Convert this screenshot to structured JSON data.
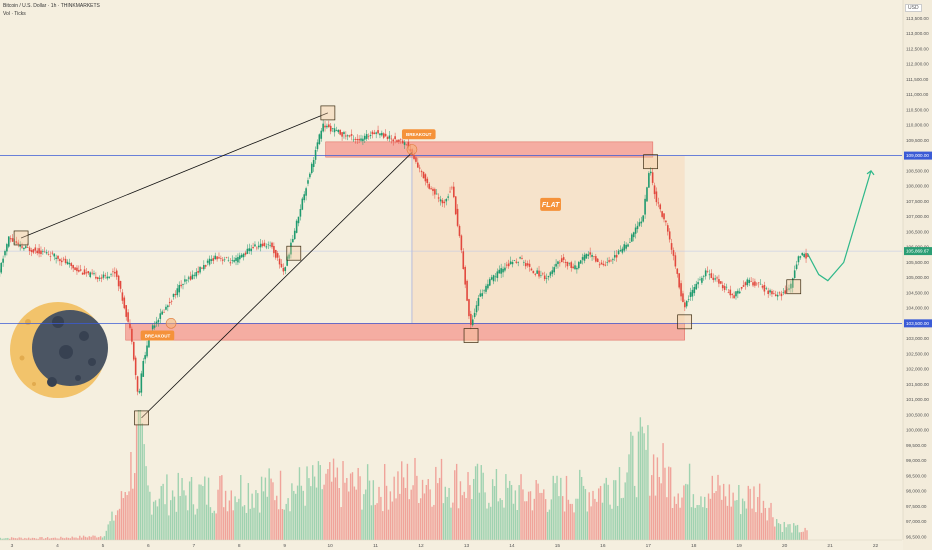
{
  "header": {
    "symbol": "Bitcoin / U.S. Dollar · 1h · THINKMARKETS",
    "volume_label": "Vol · Ticks",
    "currency": "USD"
  },
  "chart_data": {
    "type": "candlestick",
    "title": "",
    "x_ticks": [
      "3",
      "4",
      "5",
      "6",
      "7",
      "8",
      "9",
      "10",
      "11",
      "12",
      "13",
      "14",
      "15",
      "16",
      "17",
      "18",
      "19",
      "20",
      "21",
      "22"
    ],
    "y_ticks": [
      "113,500.00",
      "113,000.00",
      "112,500.00",
      "112,000.00",
      "111,500.00",
      "111,000.00",
      "110,500.00",
      "110,000.00",
      "109,500.00",
      "109,000.00",
      "108,500.00",
      "108,000.00",
      "107,500.00",
      "107,000.00",
      "106,500.00",
      "106,000.00",
      "105,500.00",
      "105,000.00",
      "104,500.00",
      "104,000.00",
      "103,500.00",
      "103,000.00",
      "102,500.00",
      "102,000.00",
      "101,500.00",
      "101,000.00",
      "100,500.00",
      "100,000.00",
      "99,500.00",
      "99,000.00",
      "98,500.00",
      "98,000.00",
      "97,500.00",
      "97,000.00",
      "96,500.00"
    ],
    "ylim": [
      96200,
      113700
    ],
    "price_path": [
      [
        2.7,
        105000
      ],
      [
        2.95,
        106300
      ],
      [
        3.2,
        106000
      ],
      [
        3.5,
        105900
      ],
      [
        3.8,
        105800
      ],
      [
        4.1,
        105600
      ],
      [
        4.4,
        105300
      ],
      [
        4.7,
        105100
      ],
      [
        5.0,
        105000
      ],
      [
        5.3,
        105200
      ],
      [
        5.5,
        104000
      ],
      [
        5.65,
        103100
      ],
      [
        5.8,
        101000
      ],
      [
        5.9,
        102200
      ],
      [
        6.1,
        103400
      ],
      [
        6.4,
        104000
      ],
      [
        6.7,
        104700
      ],
      [
        7.1,
        105200
      ],
      [
        7.5,
        105700
      ],
      [
        7.9,
        105500
      ],
      [
        8.3,
        106000
      ],
      [
        8.7,
        106100
      ],
      [
        9.0,
        105200
      ],
      [
        9.2,
        106300
      ],
      [
        9.4,
        107500
      ],
      [
        9.6,
        108600
      ],
      [
        9.85,
        110000
      ],
      [
        10.0,
        109900
      ],
      [
        10.3,
        109700
      ],
      [
        10.7,
        109500
      ],
      [
        11.0,
        109800
      ],
      [
        11.3,
        109600
      ],
      [
        11.7,
        109400
      ],
      [
        12.0,
        108500
      ],
      [
        12.2,
        108000
      ],
      [
        12.5,
        107400
      ],
      [
        12.7,
        108000
      ],
      [
        12.9,
        106000
      ],
      [
        13.1,
        103400
      ],
      [
        13.3,
        104400
      ],
      [
        13.6,
        105000
      ],
      [
        13.9,
        105400
      ],
      [
        14.2,
        105600
      ],
      [
        14.5,
        105200
      ],
      [
        14.8,
        105000
      ],
      [
        15.1,
        105600
      ],
      [
        15.4,
        105300
      ],
      [
        15.7,
        105800
      ],
      [
        16.0,
        105400
      ],
      [
        16.3,
        105700
      ],
      [
        16.6,
        106200
      ],
      [
        16.9,
        107000
      ],
      [
        17.05,
        108600
      ],
      [
        17.2,
        107500
      ],
      [
        17.4,
        106800
      ],
      [
        17.6,
        105500
      ],
      [
        17.8,
        104000
      ],
      [
        18.0,
        104600
      ],
      [
        18.3,
        105200
      ],
      [
        18.6,
        104800
      ],
      [
        18.9,
        104400
      ],
      [
        19.2,
        104900
      ],
      [
        19.5,
        104700
      ],
      [
        19.8,
        104400
      ],
      [
        20.0,
        104500
      ],
      [
        20.15,
        104700
      ],
      [
        20.35,
        105800
      ],
      [
        20.5,
        105700
      ]
    ],
    "projection": [
      [
        20.5,
        105800
      ],
      [
        20.75,
        105100
      ],
      [
        20.95,
        104900
      ],
      [
        21.3,
        105500
      ],
      [
        21.7,
        107500
      ],
      [
        21.9,
        108500
      ]
    ],
    "levels": [
      {
        "price": 109000,
        "label": "109,000.00"
      },
      {
        "price": 103500,
        "label": "103,500.00"
      }
    ],
    "current_price": {
      "price": 105869,
      "label": "105,869.67"
    },
    "zones": [
      {
        "x": [
          9.9,
          17.1
        ],
        "y": [
          108950,
          109450
        ]
      },
      {
        "x": [
          5.5,
          17.8
        ],
        "y": [
          102950,
          103500
        ]
      }
    ],
    "range_box": {
      "x": [
        11.8,
        17.8
      ],
      "y": [
        103500,
        109000
      ]
    },
    "annotations": [
      {
        "text": "BREAKOUT",
        "x": 11.95,
        "y": 109700
      },
      {
        "text": "BREAKOUT",
        "x": 6.2,
        "y": 103100
      },
      {
        "text": "FLAT",
        "x": 14.85,
        "y": 107400
      }
    ],
    "trendlines": [
      [
        [
          3.2,
          106300
        ],
        [
          9.95,
          110400
        ]
      ],
      [
        [
          5.85,
          100400
        ],
        [
          11.8,
          109100
        ]
      ]
    ],
    "marker_boxes": [
      {
        "x": 3.2,
        "y": 106300
      },
      {
        "x": 5.85,
        "y": 100400
      },
      {
        "x": 9.95,
        "y": 110400
      },
      {
        "x": 9.2,
        "y": 105800
      },
      {
        "x": 13.1,
        "y": 103100
      },
      {
        "x": 17.05,
        "y": 108800
      },
      {
        "x": 17.8,
        "y": 103550
      },
      {
        "x": 20.2,
        "y": 104700
      }
    ],
    "volume_profile": [
      [
        2.7,
        0.02
      ],
      [
        4.0,
        0.02
      ],
      [
        5.0,
        0.04
      ],
      [
        5.4,
        0.35
      ],
      [
        5.8,
        1.0
      ],
      [
        6.0,
        0.45
      ],
      [
        7.0,
        0.45
      ],
      [
        8.0,
        0.5
      ],
      [
        9.0,
        0.5
      ],
      [
        10.0,
        0.55
      ],
      [
        11.0,
        0.5
      ],
      [
        12.0,
        0.6
      ],
      [
        13.0,
        0.55
      ],
      [
        14.0,
        0.45
      ],
      [
        15.0,
        0.45
      ],
      [
        16.0,
        0.5
      ],
      [
        16.9,
        0.85
      ],
      [
        17.6,
        0.55
      ],
      [
        18.3,
        0.5
      ],
      [
        19.0,
        0.4
      ],
      [
        19.5,
        0.45
      ],
      [
        19.9,
        0.15
      ],
      [
        20.5,
        0.08
      ]
    ]
  }
}
